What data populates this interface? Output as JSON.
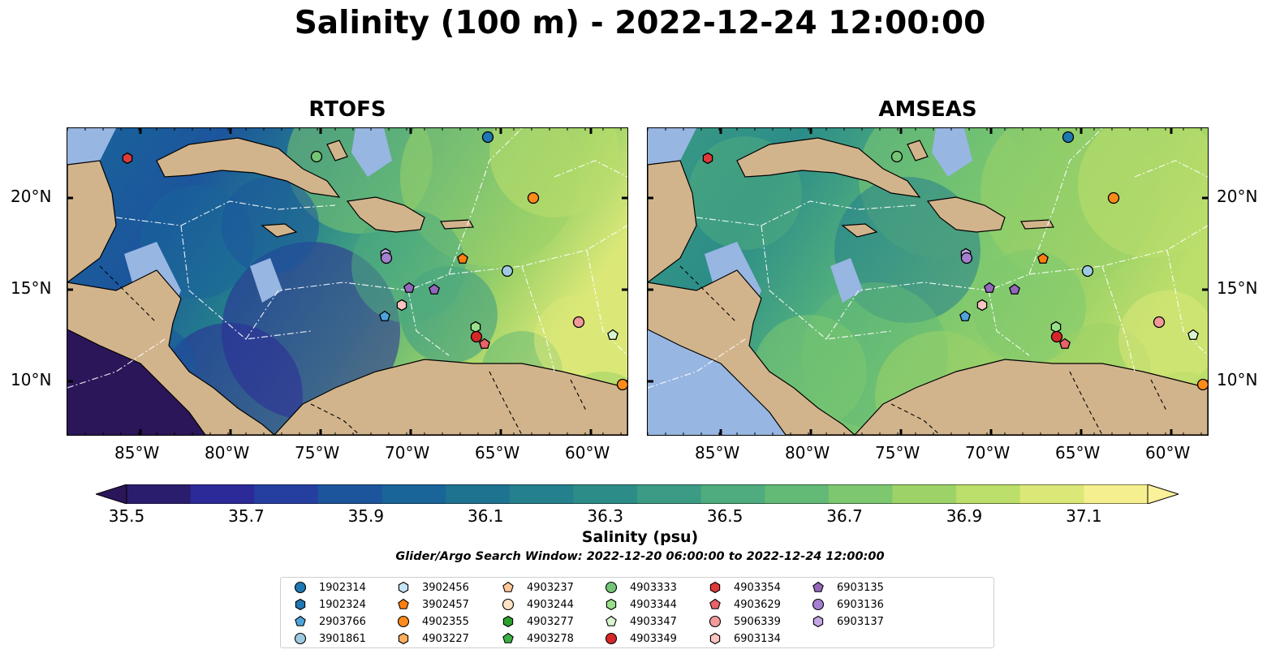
{
  "title": "Salinity (100 m) - 2022-12-24 12:00:00",
  "panels": [
    {
      "title": "RTOFS",
      "style": "rtofs"
    },
    {
      "title": "AMSEAS",
      "style": "amseas"
    }
  ],
  "lat_labels": [
    "20°N",
    "15°N",
    "10°N"
  ],
  "lon_labels": [
    "85°W",
    "80°W",
    "75°W",
    "70°W",
    "65°W",
    "60°W"
  ],
  "colorbar": {
    "label": "Salinity (psu)",
    "min": 35.5,
    "max": 37.1,
    "step": 0.1,
    "ticks": [
      "35.5",
      "35.7",
      "35.9",
      "36.1",
      "36.3",
      "36.5",
      "36.7",
      "36.9",
      "37.1"
    ],
    "colors": [
      "#2b1d6e",
      "#2b2a98",
      "#253fa0",
      "#1c559c",
      "#19659a",
      "#1d7390",
      "#24808c",
      "#2c8d88",
      "#3b9b84",
      "#4eac7e",
      "#62ba76",
      "#7dc86f",
      "#9dd268",
      "#bcde6b",
      "#dbe878",
      "#f5ef8e"
    ],
    "under_color": "#2b1659",
    "over_color": "#fbf19a"
  },
  "search_window": "Glider/Argo Search Window: 2022-12-20 06:00:00 to 2022-12-24 12:00:00",
  "legend": [
    {
      "id": "1902314",
      "color": "#1f77b4",
      "marker": "circle"
    },
    {
      "id": "1902324",
      "color": "#1f77b4",
      "marker": "hexagon"
    },
    {
      "id": "2903766",
      "color": "#4fa3dc",
      "marker": "pentagon"
    },
    {
      "id": "3901861",
      "color": "#9ecae1",
      "marker": "circle"
    },
    {
      "id": "3902456",
      "color": "#c6e4f4",
      "marker": "hexagon"
    },
    {
      "id": "3902457",
      "color": "#ff7f0e",
      "marker": "pentagon"
    },
    {
      "id": "4902355",
      "color": "#ff8c1a",
      "marker": "circle"
    },
    {
      "id": "4903227",
      "color": "#ffae5c",
      "marker": "hexagon"
    },
    {
      "id": "4903237",
      "color": "#ffc99a",
      "marker": "pentagon"
    },
    {
      "id": "4903244",
      "color": "#ffe2c4",
      "marker": "circle"
    },
    {
      "id": "4903277",
      "color": "#2ca02c",
      "marker": "hexagon"
    },
    {
      "id": "4903278",
      "color": "#3cb043",
      "marker": "pentagon"
    },
    {
      "id": "4903333",
      "color": "#74c476",
      "marker": "circle"
    },
    {
      "id": "4903344",
      "color": "#98df8a",
      "marker": "hexagon"
    },
    {
      "id": "4903347",
      "color": "#d9f5cf",
      "marker": "pentagon"
    },
    {
      "id": "4903349",
      "color": "#d62728",
      "marker": "circle"
    },
    {
      "id": "4903354",
      "color": "#e0393a",
      "marker": "hexagon"
    },
    {
      "id": "4903629",
      "color": "#e8626a",
      "marker": "pentagon"
    },
    {
      "id": "5906339",
      "color": "#f29a9a",
      "marker": "circle"
    },
    {
      "id": "6903134",
      "color": "#fbc4c0",
      "marker": "hexagon"
    },
    {
      "id": "6903135",
      "color": "#9467bd",
      "marker": "pentagon"
    },
    {
      "id": "6903136",
      "color": "#a57fd0",
      "marker": "circle"
    },
    {
      "id": "6903137",
      "color": "#c3a6e6",
      "marker": "hexagon"
    }
  ],
  "map_colors": {
    "land": "#d2b48c",
    "ocean_mask": "#97b6e2",
    "pacific_deep": "#2b1659"
  }
}
